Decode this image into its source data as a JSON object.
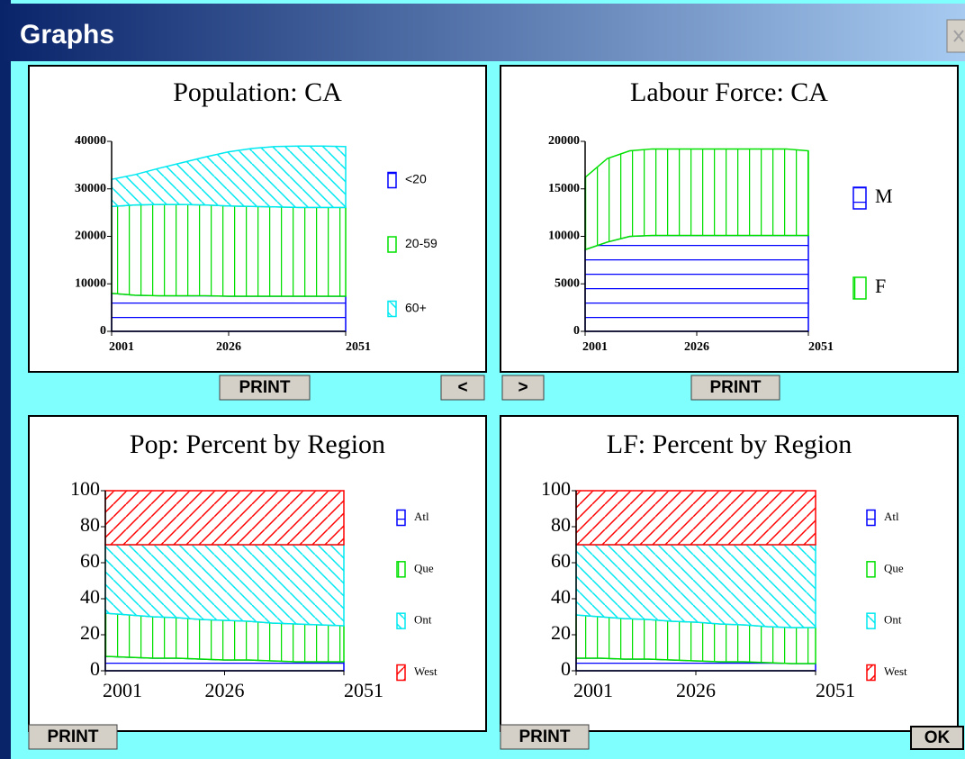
{
  "window": {
    "title": "Graphs",
    "buttons": [
      "PRINT",
      "<",
      ">",
      "PRINT",
      "PRINT",
      "PRINT",
      "OK"
    ]
  },
  "chart_data": [
    {
      "type": "area",
      "stacked": true,
      "title": "Population: CA",
      "x": [
        2001,
        2006,
        2011,
        2016,
        2021,
        2026,
        2031,
        2036,
        2041,
        2046,
        2051
      ],
      "xlim": [
        2001,
        2051
      ],
      "xticks": [
        2001,
        2026,
        2051
      ],
      "ylim": [
        0,
        40000
      ],
      "yticks": [
        0,
        10000,
        20000,
        30000,
        40000
      ],
      "series": [
        {
          "name": "<20",
          "color": "#0000ff",
          "pattern": "horizontal",
          "values": [
            8000,
            7600,
            7500,
            7500,
            7500,
            7400,
            7400,
            7400,
            7400,
            7400,
            7400
          ]
        },
        {
          "name": "20-59",
          "color": "#00e000",
          "pattern": "vertical",
          "values": [
            18300,
            19000,
            19200,
            19200,
            19100,
            19000,
            18900,
            18800,
            18700,
            18700,
            18700
          ]
        },
        {
          "name": "60+",
          "color": "#00e8f0",
          "pattern": "backslash",
          "values": [
            5700,
            6400,
            7600,
            8800,
            10100,
            11400,
            12200,
            12700,
            12900,
            12900,
            12800
          ]
        }
      ]
    },
    {
      "type": "area",
      "stacked": true,
      "title": "Labour Force: CA",
      "x": [
        2001,
        2006,
        2011,
        2016,
        2021,
        2026,
        2031,
        2036,
        2041,
        2046,
        2051
      ],
      "xlim": [
        2001,
        2051
      ],
      "xticks": [
        2001,
        2026,
        2051
      ],
      "ylim": [
        0,
        20000
      ],
      "yticks": [
        0,
        5000,
        10000,
        15000,
        20000
      ],
      "series": [
        {
          "name": "M",
          "color": "#0000ff",
          "pattern": "horizontal",
          "values": [
            8600,
            9400,
            10000,
            10100,
            10100,
            10100,
            10100,
            10100,
            10100,
            10100,
            10100
          ]
        },
        {
          "name": "F",
          "color": "#00e000",
          "pattern": "vertical",
          "values": [
            7600,
            8800,
            9000,
            9100,
            9100,
            9100,
            9100,
            9100,
            9100,
            9100,
            8900
          ]
        }
      ]
    },
    {
      "type": "area",
      "stacked": true,
      "title": "Pop: Percent by Region",
      "x": [
        2001,
        2006,
        2011,
        2016,
        2021,
        2026,
        2031,
        2036,
        2041,
        2046,
        2051
      ],
      "xlim": [
        2001,
        2051
      ],
      "xticks": [
        2001,
        2026,
        2051
      ],
      "ylim": [
        0,
        100
      ],
      "yticks": [
        0,
        20,
        40,
        60,
        80,
        100
      ],
      "series": [
        {
          "name": "Atl",
          "color": "#0000ff",
          "pattern": "horizontal",
          "values": [
            8,
            7.5,
            7,
            7,
            6.5,
            6,
            6,
            5.5,
            5,
            5,
            5
          ]
        },
        {
          "name": "Que",
          "color": "#00e000",
          "pattern": "vertical",
          "values": [
            24,
            23.5,
            23,
            22.5,
            22,
            22,
            21.5,
            21,
            21,
            20.5,
            20
          ]
        },
        {
          "name": "Ont",
          "color": "#00e8f0",
          "pattern": "backslash",
          "values": [
            38,
            39,
            40,
            40.5,
            41.5,
            42,
            42.5,
            43.5,
            44,
            44.5,
            45
          ]
        },
        {
          "name": "West",
          "color": "#ff0000",
          "pattern": "slash",
          "values": [
            30,
            30,
            30,
            30,
            30,
            30,
            30,
            30,
            30,
            30,
            30
          ]
        }
      ]
    },
    {
      "type": "area",
      "stacked": true,
      "title": "LF: Percent by Region",
      "x": [
        2001,
        2006,
        2011,
        2016,
        2021,
        2026,
        2031,
        2036,
        2041,
        2046,
        2051
      ],
      "xlim": [
        2001,
        2051
      ],
      "xticks": [
        2001,
        2026,
        2051
      ],
      "ylim": [
        0,
        100
      ],
      "yticks": [
        0,
        20,
        40,
        60,
        80,
        100
      ],
      "series": [
        {
          "name": "Atl",
          "color": "#0000ff",
          "pattern": "horizontal",
          "values": [
            7,
            7,
            6.5,
            6.5,
            6,
            5.5,
            5,
            5,
            4.5,
            4,
            4
          ]
        },
        {
          "name": "Que",
          "color": "#00e000",
          "pattern": "vertical",
          "values": [
            24,
            23,
            22.5,
            22,
            21.5,
            21.5,
            21,
            20.5,
            20,
            20,
            20
          ]
        },
        {
          "name": "Ont",
          "color": "#00e8f0",
          "pattern": "backslash",
          "values": [
            39,
            40,
            41,
            41.5,
            42.5,
            43,
            44,
            44.5,
            45.5,
            46,
            46
          ]
        },
        {
          "name": "West",
          "color": "#ff0000",
          "pattern": "slash",
          "values": [
            30,
            30,
            30,
            30,
            30,
            30,
            30,
            30,
            30,
            30,
            30
          ]
        }
      ]
    }
  ]
}
